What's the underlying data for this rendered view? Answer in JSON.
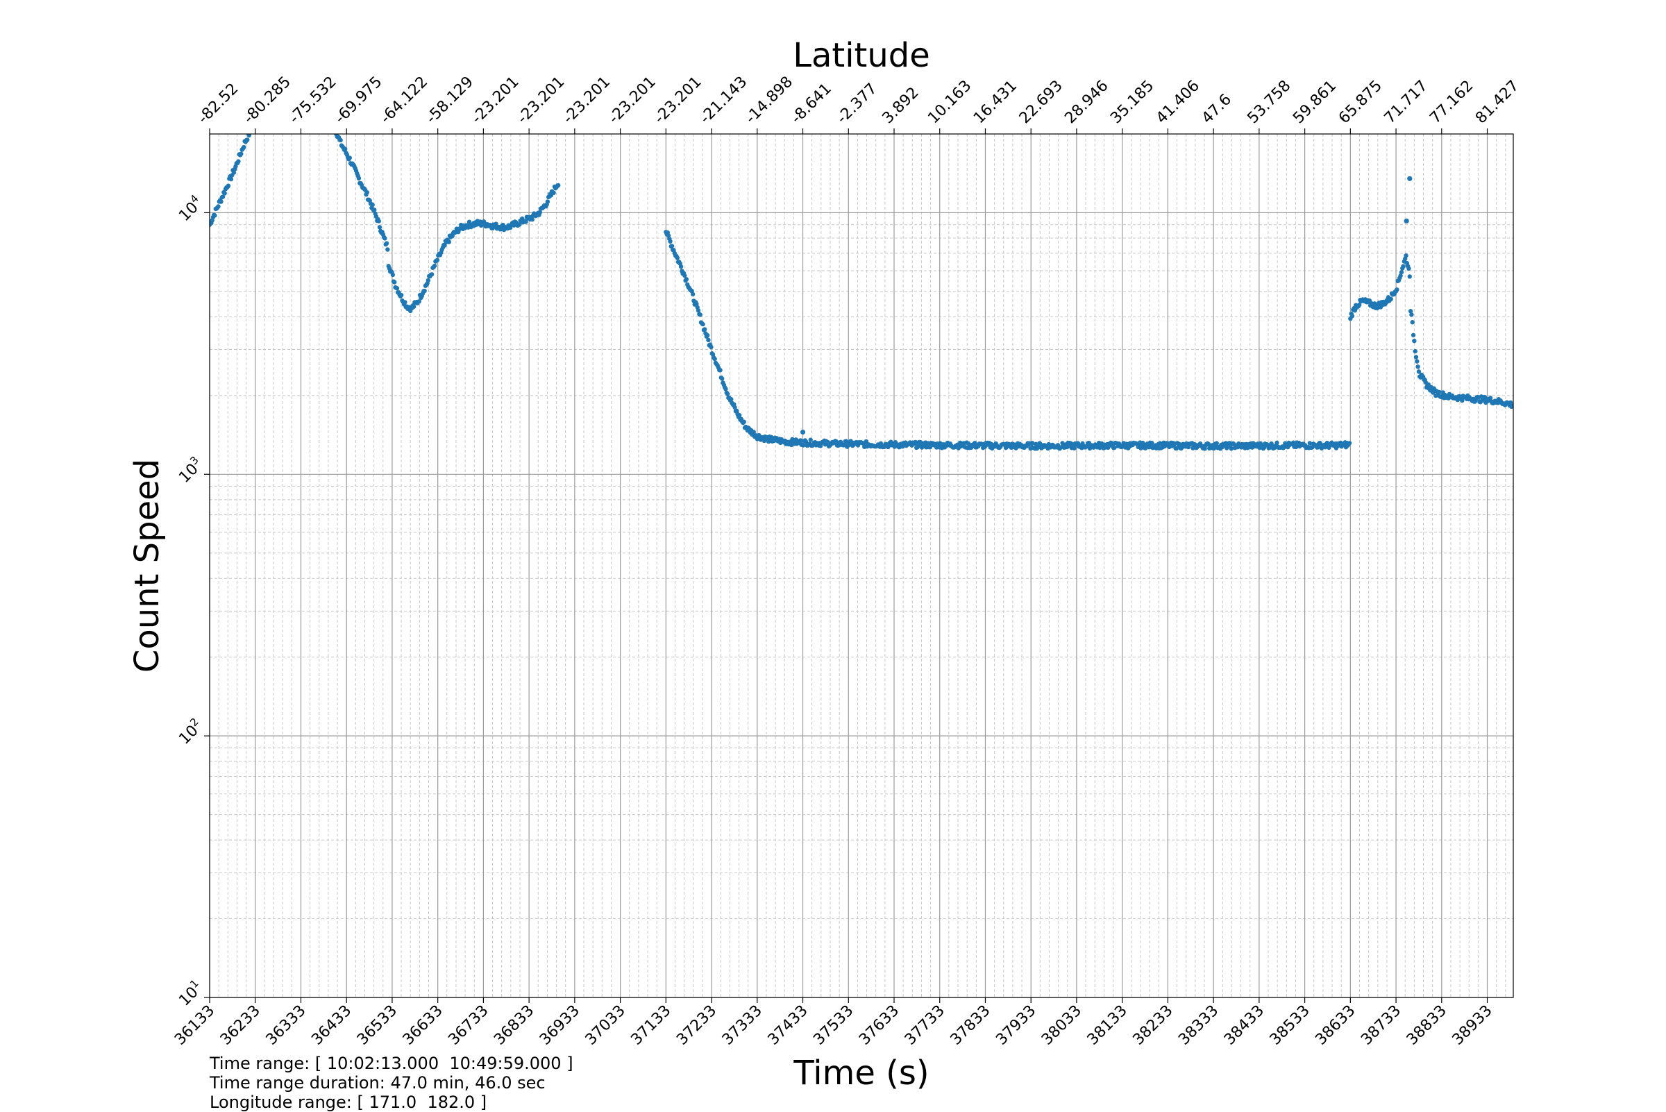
{
  "chart_data": {
    "type": "scatter",
    "title": "Latitude",
    "xlabel": "Time (s)",
    "ylabel": "Count Speed",
    "x_range": [
      36133,
      38990
    ],
    "y_range": [
      10,
      20000
    ],
    "yscale": "log",
    "grid": true,
    "marker_color": "#1f77b4",
    "x_ticks": [
      "36133",
      "36233",
      "36333",
      "36433",
      "36533",
      "36633",
      "36733",
      "36833",
      "36933",
      "37033",
      "37133",
      "37233",
      "37333",
      "37433",
      "37533",
      "37633",
      "37733",
      "37833",
      "37933",
      "38033",
      "38133",
      "38233",
      "38333",
      "38433",
      "38533",
      "38633",
      "38733",
      "38833",
      "38933"
    ],
    "y_ticks": [
      {
        "value": 10,
        "base": "10",
        "exp": "1"
      },
      {
        "value": 100,
        "base": "10",
        "exp": "2"
      },
      {
        "value": 1000,
        "base": "10",
        "exp": "3"
      },
      {
        "value": 10000,
        "base": "10",
        "exp": "4"
      }
    ],
    "top_ticks": [
      "-82.52",
      "-80.285",
      "-75.532",
      "-69.975",
      "-64.122",
      "-58.129",
      "-23.201",
      "-23.201",
      "-23.201",
      "-23.201",
      "-23.201",
      "-21.143",
      "-14.898",
      "-8.641",
      "-2.377",
      "3.892",
      "10.163",
      "16.431",
      "22.693",
      "28.946",
      "35.185",
      "41.406",
      "47.6",
      "53.758",
      "59.861",
      "65.875",
      "71.717",
      "77.162",
      "81.427"
    ],
    "series": [
      {
        "segments": [
          {
            "x": [
              36133,
              36150,
              36170,
              36190,
              36210,
              36225,
              36233
            ],
            "y": [
              9000,
              10500,
              12500,
              15000,
              18500,
              21000,
              23000
            ]
          },
          {
            "x": [
              36403,
              36420,
              36440,
              36460,
              36480,
              36500,
              36515,
              36525
            ],
            "y": [
              22000,
              18500,
              16000,
              13500,
              11500,
              9500,
              8000,
              7200
            ]
          },
          {
            "x": [
              36525,
              36540,
              36555,
              36565,
              36575,
              36590,
              36610,
              36630,
              36650,
              36665,
              36680,
              36700,
              36720
            ],
            "y": [
              6400,
              5300,
              4700,
              4400,
              4300,
              4600,
              5400,
              6500,
              7600,
              8200,
              8700,
              9000,
              9100
            ]
          },
          {
            "x": [
              36720,
              36740,
              36755,
              36770,
              36780,
              36790,
              36800,
              36820,
              36840,
              36855,
              36870,
              36885,
              36899
            ],
            "y": [
              9100,
              9050,
              8900,
              8850,
              8800,
              8850,
              9000,
              9300,
              9600,
              10000,
              10800,
              12000,
              13200
            ]
          },
          {
            "x": [
              37133,
              37150,
              37170,
              37190,
              37210,
              37230,
              37250,
              37270,
              37290,
              37310,
              37333,
              37360,
              37400
            ],
            "y": [
              8500,
              7200,
              6000,
              4900,
              3900,
              3100,
              2500,
              2000,
              1700,
              1500,
              1400,
              1360,
              1330
            ]
          },
          {
            "x": [
              37400,
              37500,
              37600,
              37700,
              37800,
              37900,
              38000,
              38100,
              38200,
              38300,
              38400,
              38500,
              38600,
              38633
            ],
            "y": [
              1330,
              1310,
              1300,
              1295,
              1290,
              1285,
              1285,
              1290,
              1290,
              1285,
              1285,
              1290,
              1290,
              1300
            ]
          },
          {
            "x": [
              38633,
              38645,
              38660,
              38675,
              38690,
              38705,
              38720,
              38735,
              38745,
              38755,
              38765
            ],
            "y": [
              4000,
              4400,
              4600,
              4500,
              4400,
              4500,
              4700,
              5200,
              6000,
              6800,
              5600
            ]
          },
          {
            "x": [
              38765,
              38775,
              38785,
              38800,
              38820,
              38850,
              38880,
              38910,
              38940,
              38970,
              38990
            ],
            "y": [
              4300,
              3000,
              2400,
              2200,
              2050,
              1980,
              1960,
              1940,
              1920,
              1880,
              1840
            ]
          }
        ],
        "outliers": [
          {
            "x": 38763,
            "y": 13500
          },
          {
            "x": 38756,
            "y": 9300
          },
          {
            "x": 37433,
            "y": 1450
          }
        ]
      }
    ]
  },
  "footer": {
    "time_range": "Time range: [ 10:02:13.000  10:49:59.000 ]",
    "duration": "Time range duration: 47.0 min, 46.0 sec",
    "longitude": "Longitude range: [ 171.0  182.0 ]"
  }
}
